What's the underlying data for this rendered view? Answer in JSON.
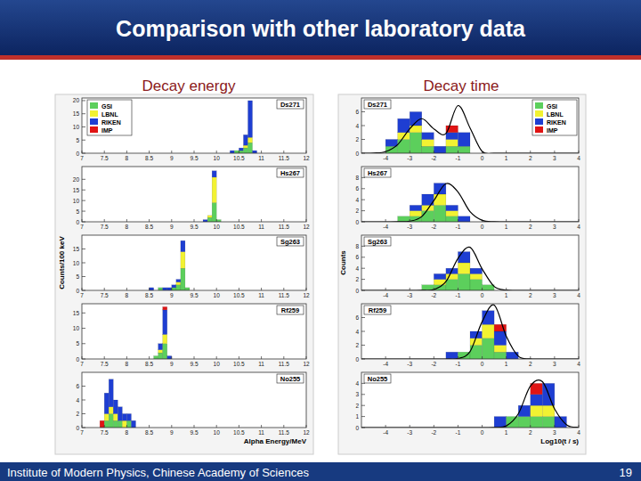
{
  "slide": {
    "title": "Comparison with other laboratory data",
    "column_titles": [
      "Decay energy",
      "Decay time"
    ],
    "footer": "Institute of Modern Physics, Chinese Academy of Sciences",
    "page": "19"
  },
  "chart_data": [
    {
      "type": "histogram",
      "title": "Ds271",
      "stacked": true,
      "legend": "top-left",
      "bins": [
        10.3,
        10.4,
        10.5,
        10.6,
        10.7,
        10.8,
        10.9
      ],
      "series": [
        {
          "name": "GSI",
          "color": "#5ccf5c",
          "values": [
            0,
            1,
            1,
            2,
            4,
            0
          ]
        },
        {
          "name": "LBNL",
          "color": "#f2f232",
          "values": [
            0,
            0,
            0,
            1,
            2,
            0
          ]
        },
        {
          "name": "RIKEN",
          "color": "#1e3ed2",
          "values": [
            1,
            0,
            1,
            4,
            14,
            1
          ]
        },
        {
          "name": "IMP",
          "color": "#e01414",
          "values": [
            0,
            0,
            0,
            0,
            0,
            0
          ]
        }
      ],
      "xlim": [
        7,
        12
      ],
      "xticks": [
        7,
        7.5,
        8,
        8.5,
        9,
        9.5,
        10,
        10.5,
        11,
        11.5,
        12
      ],
      "ylim": [
        0,
        21
      ],
      "yticks": [
        0,
        5,
        10,
        15,
        20
      ]
    },
    {
      "type": "histogram",
      "title": "Hs267",
      "stacked": true,
      "bins": [
        9.7,
        9.8,
        9.9,
        10.0,
        10.1
      ],
      "series": [
        {
          "name": "GSI",
          "color": "#5ccf5c",
          "values": [
            0,
            2,
            9,
            1
          ]
        },
        {
          "name": "LBNL",
          "color": "#f2f232",
          "values": [
            0,
            1,
            12,
            0
          ]
        },
        {
          "name": "RIKEN",
          "color": "#1e3ed2",
          "values": [
            1,
            0,
            3,
            0
          ]
        },
        {
          "name": "IMP",
          "color": "#e01414",
          "values": [
            0,
            0,
            0,
            0
          ]
        }
      ],
      "xlim": [
        7,
        12
      ],
      "xticks": [
        7,
        7.5,
        8,
        8.5,
        9,
        9.5,
        10,
        10.5,
        11,
        11.5,
        12
      ],
      "ylim": [
        0,
        26
      ],
      "yticks": [
        0,
        5,
        10,
        15,
        20
      ]
    },
    {
      "type": "histogram",
      "title": "Sg263",
      "stacked": true,
      "y_label": "Counts/100 keV",
      "bins": [
        8.5,
        8.6,
        8.7,
        8.8,
        8.9,
        9.0,
        9.1,
        9.2,
        9.3,
        9.4
      ],
      "series": [
        {
          "name": "GSI",
          "color": "#5ccf5c",
          "values": [
            0,
            0,
            1,
            0,
            0,
            1,
            2,
            8,
            1
          ]
        },
        {
          "name": "LBNL",
          "color": "#f2f232",
          "values": [
            0,
            0,
            0,
            0,
            0,
            0,
            1,
            6,
            0
          ]
        },
        {
          "name": "RIKEN",
          "color": "#1e3ed2",
          "values": [
            1,
            0,
            0,
            1,
            1,
            1,
            1,
            4,
            0
          ]
        },
        {
          "name": "IMP",
          "color": "#e01414",
          "values": [
            0,
            0,
            0,
            0,
            0,
            0,
            0,
            0,
            0
          ]
        }
      ],
      "xlim": [
        7,
        12
      ],
      "xticks": [
        7,
        7.5,
        8,
        8.5,
        9,
        9.5,
        10,
        10.5,
        11,
        11.5,
        12
      ],
      "ylim": [
        0,
        20
      ],
      "yticks": [
        0,
        5,
        10,
        15
      ]
    },
    {
      "type": "histogram",
      "title": "Rf259",
      "stacked": true,
      "bins": [
        8.6,
        8.7,
        8.8,
        8.9,
        9.0
      ],
      "series": [
        {
          "name": "GSI",
          "color": "#5ccf5c",
          "values": [
            1,
            2,
            5,
            0
          ]
        },
        {
          "name": "LBNL",
          "color": "#f2f232",
          "values": [
            0,
            1,
            3,
            0
          ]
        },
        {
          "name": "RIKEN",
          "color": "#1e3ed2",
          "values": [
            0,
            2,
            8,
            1
          ]
        },
        {
          "name": "IMP",
          "color": "#e01414",
          "values": [
            0,
            0,
            1,
            0
          ]
        }
      ],
      "xlim": [
        7,
        12
      ],
      "xticks": [
        7,
        7.5,
        8,
        8.5,
        9,
        9.5,
        10,
        10.5,
        11,
        11.5,
        12
      ],
      "ylim": [
        0,
        18
      ],
      "yticks": [
        0,
        5,
        10,
        15
      ]
    },
    {
      "type": "histogram",
      "title": "No255",
      "stacked": true,
      "x_label": "Alpha Energy/MeV",
      "bins": [
        7.4,
        7.5,
        7.6,
        7.7,
        7.8,
        7.9,
        8.0,
        8.1,
        8.2
      ],
      "series": [
        {
          "name": "GSI",
          "color": "#5ccf5c",
          "values": [
            0,
            1,
            2,
            1,
            1,
            0,
            1,
            0
          ]
        },
        {
          "name": "LBNL",
          "color": "#f2f232",
          "values": [
            0,
            1,
            1,
            1,
            0,
            1,
            0,
            0
          ]
        },
        {
          "name": "RIKEN",
          "color": "#1e3ed2",
          "values": [
            0,
            3,
            4,
            2,
            2,
            1,
            1,
            1
          ]
        },
        {
          "name": "IMP",
          "color": "#e01414",
          "values": [
            1,
            0,
            0,
            0,
            0,
            0,
            0,
            0
          ]
        }
      ],
      "xlim": [
        7,
        12
      ],
      "xticks": [
        7,
        7.5,
        8,
        8.5,
        9,
        9.5,
        10,
        10.5,
        11,
        11.5,
        12
      ],
      "ylim": [
        0,
        8
      ],
      "yticks": [
        0,
        2,
        4,
        6
      ]
    },
    {
      "type": "histogram",
      "title": "Ds271",
      "stacked": true,
      "legend": "top-right",
      "bins": [
        -4,
        -3.5,
        -3,
        -2.5,
        -2,
        -1.5,
        -1,
        -0.5,
        0
      ],
      "series": [
        {
          "name": "GSI",
          "color": "#5ccf5c",
          "values": [
            1,
            2,
            3,
            1,
            0,
            1,
            1,
            0
          ]
        },
        {
          "name": "LBNL",
          "color": "#f2f232",
          "values": [
            0,
            1,
            1,
            1,
            0,
            1,
            0,
            0
          ]
        },
        {
          "name": "RIKEN",
          "color": "#1e3ed2",
          "values": [
            1,
            2,
            2,
            1,
            1,
            1,
            2,
            0
          ]
        },
        {
          "name": "IMP",
          "color": "#e01414",
          "values": [
            0,
            0,
            0,
            0,
            0,
            1,
            0,
            0
          ]
        },
        {
          "type": "line",
          "color": "#000000",
          "x": [
            -5,
            -4.5,
            -4,
            -3.5,
            -3,
            -2.5,
            -2,
            -1.5,
            -1,
            -0.5,
            0,
            0.5,
            1,
            1.5,
            2,
            2.5,
            3,
            3.5,
            4
          ],
          "values": [
            0,
            0.02,
            0.22,
            1.25,
            3.53,
            5,
            3.53,
            2.85,
            6.9,
            3.65,
            0.26,
            0,
            0,
            0,
            0,
            0,
            0,
            0,
            0
          ]
        }
      ],
      "xlim": [
        -5,
        4
      ],
      "xticks": [
        -4,
        -3,
        -2,
        -1,
        0,
        1,
        2,
        3,
        4
      ],
      "ylim": [
        0,
        8
      ],
      "yticks": [
        0,
        2,
        4,
        6
      ]
    },
    {
      "type": "histogram",
      "title": "Hs267",
      "stacked": true,
      "bins": [
        -3.5,
        -3,
        -2.5,
        -2,
        -1.5,
        -1,
        -0.5
      ],
      "series": [
        {
          "name": "GSI",
          "color": "#5ccf5c",
          "values": [
            1,
            1,
            2,
            3,
            1,
            0
          ]
        },
        {
          "name": "LBNL",
          "color": "#f2f232",
          "values": [
            0,
            1,
            1,
            2,
            1,
            0
          ]
        },
        {
          "name": "RIKEN",
          "color": "#1e3ed2",
          "values": [
            0,
            1,
            2,
            2,
            1,
            1
          ]
        },
        {
          "name": "IMP",
          "color": "#e01414",
          "values": [
            0,
            0,
            0,
            0,
            0,
            0
          ]
        },
        {
          "type": "line",
          "color": "#000000",
          "x": [
            -5,
            -4.5,
            -4,
            -3.5,
            -3,
            -2.5,
            -2,
            -1.5,
            -1,
            -0.5,
            0,
            0.5,
            1,
            1.5,
            2,
            2.5,
            3,
            3.5,
            4
          ],
          "values": [
            0,
            0,
            0,
            0.01,
            0.1,
            0.95,
            3.86,
            6.9,
            5.4,
            1.83,
            0.27,
            0.02,
            0,
            0,
            0,
            0,
            0,
            0,
            0
          ]
        }
      ],
      "xlim": [
        -5,
        4
      ],
      "xticks": [
        -4,
        -3,
        -2,
        -1,
        0,
        1,
        2,
        3,
        4
      ],
      "ylim": [
        0,
        10
      ],
      "yticks": [
        0,
        2,
        4,
        6,
        8
      ]
    },
    {
      "type": "histogram",
      "title": "Sg263",
      "stacked": true,
      "y_label": "Counts",
      "bins": [
        -2.5,
        -2,
        -1.5,
        -1,
        -0.5,
        0,
        0.5
      ],
      "series": [
        {
          "name": "GSI",
          "color": "#5ccf5c",
          "values": [
            1,
            1,
            2,
            3,
            2,
            1
          ]
        },
        {
          "name": "LBNL",
          "color": "#f2f232",
          "values": [
            0,
            1,
            1,
            2,
            1,
            0
          ]
        },
        {
          "name": "RIKEN",
          "color": "#1e3ed2",
          "values": [
            0,
            1,
            1,
            2,
            1,
            0
          ]
        },
        {
          "name": "IMP",
          "color": "#e01414",
          "values": [
            0,
            0,
            0,
            0,
            0,
            0
          ]
        },
        {
          "type": "line",
          "color": "#000000",
          "x": [
            -5,
            -4.5,
            -4,
            -3.5,
            -3,
            -2.5,
            -2,
            -1.5,
            -1,
            -0.5,
            0,
            0.5,
            1,
            1.5,
            2,
            2.5,
            3,
            3.5,
            4
          ],
          "values": [
            0,
            0,
            0,
            0,
            0,
            0.01,
            0.16,
            1.58,
            5.8,
            7.8,
            3.9,
            0.71,
            0.05,
            0,
            0,
            0,
            0,
            0,
            0
          ]
        }
      ],
      "xlim": [
        -5,
        4
      ],
      "xticks": [
        -4,
        -3,
        -2,
        -1,
        0,
        1,
        2,
        3,
        4
      ],
      "ylim": [
        0,
        10
      ],
      "yticks": [
        0,
        2,
        4,
        6,
        8
      ]
    },
    {
      "type": "histogram",
      "title": "Rf259",
      "stacked": true,
      "bins": [
        -1.5,
        -1,
        -0.5,
        0,
        0.5,
        1,
        1.5
      ],
      "series": [
        {
          "name": "GSI",
          "color": "#5ccf5c",
          "values": [
            0,
            1,
            2,
            3,
            1,
            0
          ]
        },
        {
          "name": "LBNL",
          "color": "#f2f232",
          "values": [
            0,
            0,
            1,
            2,
            1,
            0
          ]
        },
        {
          "name": "RIKEN",
          "color": "#1e3ed2",
          "values": [
            1,
            0,
            1,
            2,
            2,
            1
          ]
        },
        {
          "name": "IMP",
          "color": "#e01414",
          "values": [
            0,
            0,
            0,
            0,
            1,
            0
          ]
        },
        {
          "type": "line",
          "color": "#000000",
          "x": [
            -5,
            -4.5,
            -4,
            -3.5,
            -3,
            -2.5,
            -2,
            -1.5,
            -1,
            -0.5,
            0,
            0.5,
            1,
            1.5,
            2,
            2.5,
            3,
            3.5,
            4
          ],
          "values": [
            0,
            0,
            0,
            0,
            0,
            0,
            0,
            0,
            0.06,
            1.08,
            5.4,
            7.8,
            3.3,
            0.4,
            0.01,
            0,
            0,
            0,
            0
          ]
        }
      ],
      "xlim": [
        -5,
        4
      ],
      "xticks": [
        -4,
        -3,
        -2,
        -1,
        0,
        1,
        2,
        3,
        4
      ],
      "ylim": [
        0,
        8
      ],
      "yticks": [
        0,
        2,
        4,
        6
      ]
    },
    {
      "type": "histogram",
      "title": "No255",
      "stacked": true,
      "x_label": "Log10(t / s)",
      "bins": [
        0.5,
        1,
        1.5,
        2,
        2.5,
        3,
        3.5
      ],
      "series": [
        {
          "name": "GSI",
          "color": "#5ccf5c",
          "values": [
            0,
            1,
            1,
            1,
            1,
            0
          ]
        },
        {
          "name": "LBNL",
          "color": "#f2f232",
          "values": [
            0,
            0,
            0,
            1,
            1,
            0
          ]
        },
        {
          "name": "RIKEN",
          "color": "#1e3ed2",
          "values": [
            1,
            0,
            1,
            1,
            2,
            1
          ]
        },
        {
          "name": "IMP",
          "color": "#e01414",
          "values": [
            0,
            0,
            0,
            1,
            0,
            0
          ]
        },
        {
          "type": "line",
          "color": "#000000",
          "x": [
            -5,
            -4.5,
            -4,
            -3.5,
            -3,
            -2.5,
            -2,
            -1.5,
            -1,
            -0.5,
            0,
            0.5,
            1,
            1.5,
            2,
            2.5,
            3,
            3.5,
            4
          ],
          "values": [
            0,
            0,
            0,
            0,
            0,
            0,
            0,
            0,
            0,
            0,
            0,
            0.01,
            0.15,
            1.25,
            3.76,
            4.15,
            1.69,
            0.25,
            0.01
          ]
        }
      ],
      "xlim": [
        -5,
        4
      ],
      "xticks": [
        -4,
        -3,
        -2,
        -1,
        0,
        1,
        2,
        3,
        4
      ],
      "ylim": [
        0,
        5
      ],
      "yticks": [
        0,
        1,
        2,
        3,
        4
      ]
    }
  ]
}
